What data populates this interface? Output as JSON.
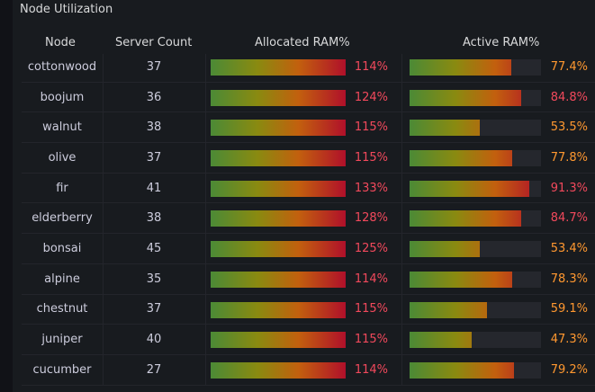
{
  "panel": {
    "title": "Node Utilization"
  },
  "columns": {
    "node": "Node",
    "server_count": "Server Count",
    "allocated_ram": "Allocated RAM%",
    "active_ram": "Active RAM%"
  },
  "colors": {
    "allocated_text": "#f2495c",
    "active_warn": "#ff9830",
    "active_crit": "#f2495c"
  },
  "rows": [
    {
      "node": "cottonwood",
      "server_count": "37",
      "allocated": 114,
      "allocated_label": "114%",
      "active": 77.4,
      "active_label": "77.4%",
      "active_level": "warn"
    },
    {
      "node": "boojum",
      "server_count": "36",
      "allocated": 124,
      "allocated_label": "124%",
      "active": 84.8,
      "active_label": "84.8%",
      "active_level": "crit"
    },
    {
      "node": "walnut",
      "server_count": "38",
      "allocated": 115,
      "allocated_label": "115%",
      "active": 53.5,
      "active_label": "53.5%",
      "active_level": "warn"
    },
    {
      "node": "olive",
      "server_count": "37",
      "allocated": 115,
      "allocated_label": "115%",
      "active": 77.8,
      "active_label": "77.8%",
      "active_level": "warn"
    },
    {
      "node": "fir",
      "server_count": "41",
      "allocated": 133,
      "allocated_label": "133%",
      "active": 91.3,
      "active_label": "91.3%",
      "active_level": "crit"
    },
    {
      "node": "elderberry",
      "server_count": "38",
      "allocated": 128,
      "allocated_label": "128%",
      "active": 84.7,
      "active_label": "84.7%",
      "active_level": "crit"
    },
    {
      "node": "bonsai",
      "server_count": "45",
      "allocated": 125,
      "allocated_label": "125%",
      "active": 53.4,
      "active_label": "53.4%",
      "active_level": "warn"
    },
    {
      "node": "alpine",
      "server_count": "35",
      "allocated": 114,
      "allocated_label": "114%",
      "active": 78.3,
      "active_label": "78.3%",
      "active_level": "warn"
    },
    {
      "node": "chestnut",
      "server_count": "37",
      "allocated": 115,
      "allocated_label": "115%",
      "active": 59.1,
      "active_label": "59.1%",
      "active_level": "warn"
    },
    {
      "node": "juniper",
      "server_count": "40",
      "allocated": 115,
      "allocated_label": "115%",
      "active": 47.3,
      "active_label": "47.3%",
      "active_level": "warn"
    },
    {
      "node": "cucumber",
      "server_count": "27",
      "allocated": 114,
      "allocated_label": "114%",
      "active": 79.2,
      "active_label": "79.2%",
      "active_level": "warn"
    }
  ]
}
